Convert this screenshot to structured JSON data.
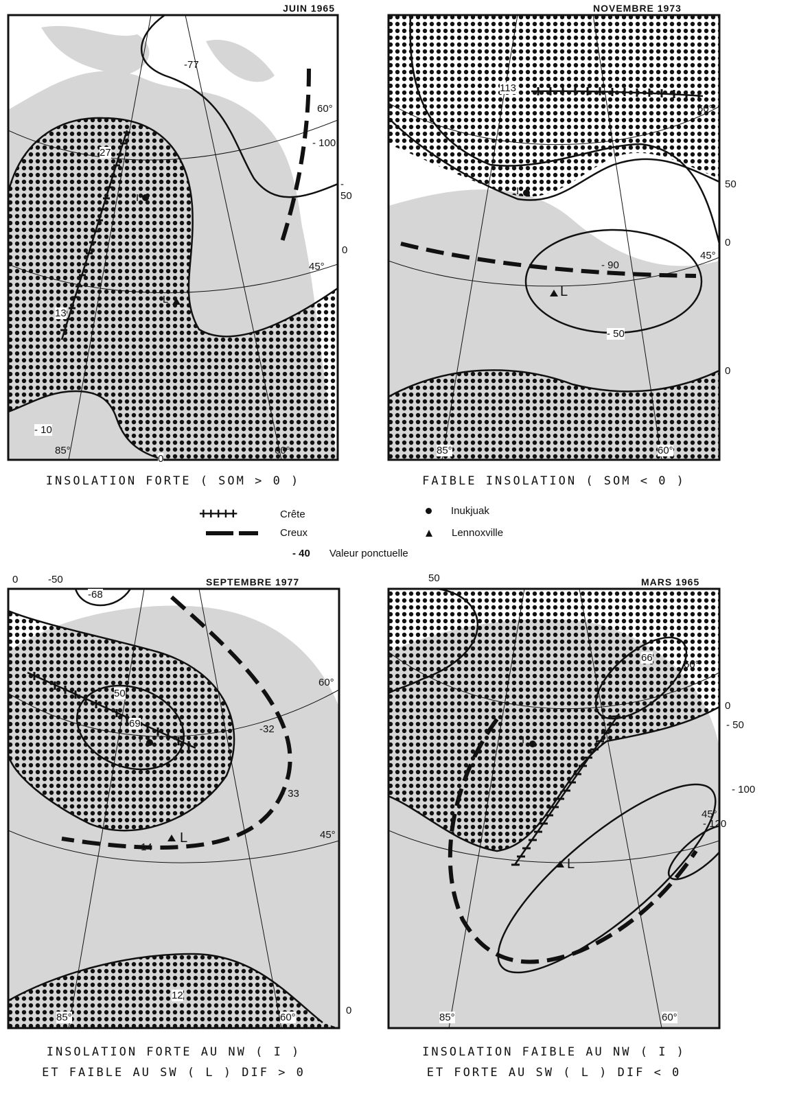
{
  "panels": [
    {
      "title": "JUIN 1965",
      "caption_lines": [
        "INSOLATION FORTE ( SOM > 0 )"
      ],
      "values": [
        "-77",
        "- 100",
        "- 50",
        "27",
        "13",
        "0",
        "- 10",
        "0"
      ],
      "lat_labels": [
        "60°",
        "45°"
      ],
      "lon_labels": [
        "85°",
        "60°"
      ],
      "station_labels": [
        "I",
        "L"
      ]
    },
    {
      "title": "NOVEMBRE 1973",
      "caption_lines": [
        "FAIBLE INSOLATION ( SOM < 0 )"
      ],
      "values": [
        "113",
        "50",
        "0",
        "- 90",
        "- 50",
        "0"
      ],
      "lat_labels": [
        "60°",
        "45°"
      ],
      "lon_labels": [
        "85°",
        "60°"
      ],
      "station_labels": [
        "I",
        "L"
      ]
    },
    {
      "title": "SEPTEMBRE 1977",
      "caption_lines": [
        "INSOLATION FORTE AU NW ( I )",
        "ET FAIBLE AU SW ( L ) DIF > 0"
      ],
      "values": [
        "0",
        "-50",
        "-68",
        "50",
        "69",
        "-32",
        "- 33",
        "- 14",
        "12",
        "0"
      ],
      "lat_labels": [
        "60°",
        "45°"
      ],
      "lon_labels": [
        "85°",
        "60°"
      ],
      "station_labels": [
        "I",
        "L"
      ]
    },
    {
      "title": "MARS 1965",
      "caption_lines": [
        "INSOLATION FAIBLE AU NW ( I )",
        "ET FORTE AU SW ( L ) DIF < 0"
      ],
      "values": [
        "50",
        "66",
        "0",
        "- 50",
        "- 100",
        "- 120"
      ],
      "lat_labels": [
        "60°",
        "45°"
      ],
      "lon_labels": [
        "85°",
        "60°"
      ],
      "station_labels": [
        "I",
        "L"
      ]
    }
  ],
  "legend": {
    "crest": "Crête",
    "trough": "Creux",
    "point_value_sample": "- 40",
    "point_value": "Valeur ponctuelle",
    "inukjuak": "Inukjuak",
    "lennoxville": "Lennoxville"
  }
}
